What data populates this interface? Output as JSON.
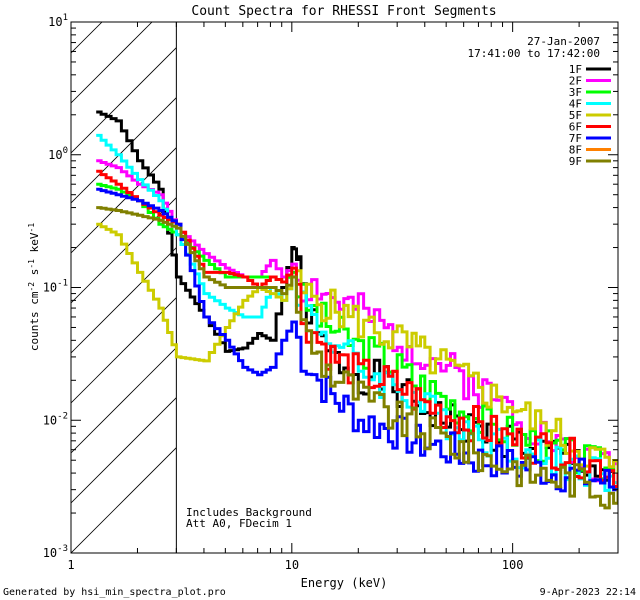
{
  "chart_data": {
    "type": "line",
    "title": "Count Spectra for RHESSI Front Segments",
    "date": "27-Jan-2007",
    "time_range": "17:41:00 to 17:42:00",
    "xlabel": "Energy (keV)",
    "ylabel": "counts cm-2 s-1 keV-1",
    "xscale": "log",
    "yscale": "log",
    "xlim": [
      1,
      300
    ],
    "ylim": [
      0.001,
      10
    ],
    "x_major_ticks": [
      {
        "v": 1,
        "label": "1"
      },
      {
        "v": 10,
        "label": "10"
      },
      {
        "v": 100,
        "label": "100"
      }
    ],
    "y_major_ticks": [
      {
        "exp": -3,
        "label": "10-3"
      },
      {
        "exp": -2,
        "label": "10-2"
      },
      {
        "exp": -1,
        "label": "10-1"
      },
      {
        "exp": 0,
        "label": "100"
      },
      {
        "exp": 1,
        "label": "101"
      }
    ],
    "shaded_region": {
      "x_min": 1,
      "x_max": 3,
      "description": "excluded low-energy band"
    },
    "annotations": [
      "Includes Background",
      "Att A0, FDecim 1"
    ],
    "legend_position": "top-right",
    "series": [
      {
        "name": "1F",
        "color": "#000000",
        "points": [
          [
            1.3,
            2.1
          ],
          [
            1.6,
            1.8
          ],
          [
            2,
            0.9
          ],
          [
            2.5,
            0.55
          ],
          [
            3,
            0.12
          ],
          [
            4,
            0.06
          ],
          [
            5,
            0.033
          ],
          [
            6,
            0.035
          ],
          [
            7,
            0.045
          ],
          [
            8,
            0.04
          ],
          [
            9,
            0.1
          ],
          [
            10,
            0.2
          ],
          [
            10.5,
            0.18
          ],
          [
            11,
            0.09
          ],
          [
            13,
            0.04
          ],
          [
            15,
            0.03
          ],
          [
            18,
            0.025
          ],
          [
            20,
            0.022
          ],
          [
            25,
            0.02
          ],
          [
            30,
            0.016
          ],
          [
            35,
            0.014
          ],
          [
            40,
            0.012
          ],
          [
            50,
            0.01
          ],
          [
            60,
            0.009
          ],
          [
            70,
            0.008
          ],
          [
            80,
            0.0075
          ],
          [
            100,
            0.007
          ],
          [
            120,
            0.006
          ],
          [
            150,
            0.0055
          ],
          [
            200,
            0.005
          ],
          [
            250,
            0.004
          ],
          [
            300,
            0.0035
          ]
        ]
      },
      {
        "name": "2F",
        "color": "#ff00ff",
        "points": [
          [
            1.3,
            0.9
          ],
          [
            1.6,
            0.8
          ],
          [
            2,
            0.6
          ],
          [
            2.5,
            0.5
          ],
          [
            3,
            0.28
          ],
          [
            4,
            0.18
          ],
          [
            5,
            0.14
          ],
          [
            6,
            0.12
          ],
          [
            7,
            0.12
          ],
          [
            8,
            0.16
          ],
          [
            9,
            0.12
          ],
          [
            10,
            0.15
          ],
          [
            11,
            0.1
          ],
          [
            13,
            0.1
          ],
          [
            15,
            0.08
          ],
          [
            18,
            0.07
          ],
          [
            20,
            0.065
          ],
          [
            25,
            0.05
          ],
          [
            30,
            0.04
          ],
          [
            35,
            0.035
          ],
          [
            40,
            0.03
          ],
          [
            50,
            0.025
          ],
          [
            60,
            0.02
          ],
          [
            70,
            0.017
          ],
          [
            80,
            0.015
          ],
          [
            100,
            0.012
          ],
          [
            120,
            0.009
          ],
          [
            150,
            0.007
          ],
          [
            200,
            0.005
          ],
          [
            250,
            0.0045
          ],
          [
            300,
            0.004
          ]
        ]
      },
      {
        "name": "3F",
        "color": "#00ff00",
        "points": [
          [
            1.3,
            0.6
          ],
          [
            1.6,
            0.55
          ],
          [
            2,
            0.45
          ],
          [
            2.5,
            0.3
          ],
          [
            3,
            0.25
          ],
          [
            4,
            0.16
          ],
          [
            5,
            0.12
          ],
          [
            6,
            0.12
          ],
          [
            7,
            0.12
          ],
          [
            8,
            0.12
          ],
          [
            9,
            0.11
          ],
          [
            10,
            0.13
          ],
          [
            11,
            0.08
          ],
          [
            13,
            0.06
          ],
          [
            15,
            0.05
          ],
          [
            18,
            0.04
          ],
          [
            20,
            0.035
          ],
          [
            25,
            0.03
          ],
          [
            30,
            0.025
          ],
          [
            35,
            0.02
          ],
          [
            40,
            0.018
          ],
          [
            50,
            0.014
          ],
          [
            60,
            0.012
          ],
          [
            70,
            0.01
          ],
          [
            80,
            0.009
          ],
          [
            100,
            0.008
          ],
          [
            120,
            0.007
          ],
          [
            150,
            0.006
          ],
          [
            200,
            0.005
          ],
          [
            250,
            0.0045
          ],
          [
            300,
            0.004
          ]
        ]
      },
      {
        "name": "4F",
        "color": "#00ffff",
        "points": [
          [
            1.3,
            1.4
          ],
          [
            1.6,
            1.0
          ],
          [
            2,
            0.65
          ],
          [
            2.5,
            0.45
          ],
          [
            3,
            0.25
          ],
          [
            4,
            0.09
          ],
          [
            5,
            0.07
          ],
          [
            6,
            0.06
          ],
          [
            7,
            0.06
          ],
          [
            8,
            0.1
          ],
          [
            9,
            0.08
          ],
          [
            10,
            0.12
          ],
          [
            11,
            0.08
          ],
          [
            13,
            0.05
          ],
          [
            15,
            0.04
          ],
          [
            18,
            0.03
          ],
          [
            20,
            0.025
          ],
          [
            25,
            0.02
          ],
          [
            30,
            0.018
          ],
          [
            35,
            0.015
          ],
          [
            40,
            0.012
          ],
          [
            50,
            0.01
          ],
          [
            60,
            0.009
          ],
          [
            70,
            0.008
          ],
          [
            80,
            0.007
          ],
          [
            100,
            0.006
          ],
          [
            120,
            0.0055
          ],
          [
            150,
            0.005
          ],
          [
            200,
            0.0045
          ],
          [
            250,
            0.004
          ],
          [
            300,
            0.0035
          ]
        ]
      },
      {
        "name": "5F",
        "color": "#cccc00",
        "points": [
          [
            1.3,
            0.3
          ],
          [
            1.6,
            0.25
          ],
          [
            2,
            0.13
          ],
          [
            2.5,
            0.07
          ],
          [
            3,
            0.03
          ],
          [
            4,
            0.028
          ],
          [
            5,
            0.05
          ],
          [
            6,
            0.08
          ],
          [
            7,
            0.1
          ],
          [
            8,
            0.09
          ],
          [
            9,
            0.08
          ],
          [
            10,
            0.12
          ],
          [
            11,
            0.09
          ],
          [
            13,
            0.08
          ],
          [
            15,
            0.07
          ],
          [
            18,
            0.06
          ],
          [
            20,
            0.055
          ],
          [
            25,
            0.045
          ],
          [
            30,
            0.04
          ],
          [
            35,
            0.035
          ],
          [
            40,
            0.03
          ],
          [
            50,
            0.025
          ],
          [
            60,
            0.02
          ],
          [
            70,
            0.018
          ],
          [
            80,
            0.015
          ],
          [
            100,
            0.013
          ],
          [
            120,
            0.01
          ],
          [
            150,
            0.008
          ],
          [
            200,
            0.006
          ],
          [
            250,
            0.005
          ],
          [
            300,
            0.004
          ]
        ]
      },
      {
        "name": "6F",
        "color": "#ff0000",
        "points": [
          [
            1.3,
            0.75
          ],
          [
            1.6,
            0.6
          ],
          [
            2,
            0.45
          ],
          [
            2.5,
            0.35
          ],
          [
            3,
            0.3
          ],
          [
            4,
            0.13
          ],
          [
            5,
            0.13
          ],
          [
            6,
            0.12
          ],
          [
            7,
            0.1
          ],
          [
            8,
            0.12
          ],
          [
            9,
            0.11
          ],
          [
            10,
            0.14
          ],
          [
            11,
            0.06
          ],
          [
            13,
            0.04
          ],
          [
            15,
            0.03
          ],
          [
            18,
            0.025
          ],
          [
            20,
            0.022
          ],
          [
            25,
            0.02
          ],
          [
            30,
            0.018
          ],
          [
            35,
            0.015
          ],
          [
            40,
            0.013
          ],
          [
            50,
            0.011
          ],
          [
            60,
            0.01
          ],
          [
            70,
            0.009
          ],
          [
            80,
            0.008
          ],
          [
            100,
            0.007
          ],
          [
            120,
            0.0065
          ],
          [
            150,
            0.006
          ],
          [
            200,
            0.005
          ],
          [
            250,
            0.0045
          ],
          [
            300,
            0.004
          ]
        ]
      },
      {
        "name": "7F",
        "color": "#0000ff",
        "points": [
          [
            1.3,
            0.55
          ],
          [
            1.6,
            0.5
          ],
          [
            2,
            0.45
          ],
          [
            2.5,
            0.38
          ],
          [
            3,
            0.3
          ],
          [
            4,
            0.06
          ],
          [
            5,
            0.04
          ],
          [
            6,
            0.025
          ],
          [
            7,
            0.022
          ],
          [
            8,
            0.025
          ],
          [
            9,
            0.04
          ],
          [
            10,
            0.055
          ],
          [
            11,
            0.03
          ],
          [
            13,
            0.02
          ],
          [
            15,
            0.015
          ],
          [
            18,
            0.012
          ],
          [
            20,
            0.01
          ],
          [
            25,
            0.009
          ],
          [
            30,
            0.008
          ],
          [
            35,
            0.007
          ],
          [
            40,
            0.0065
          ],
          [
            50,
            0.006
          ],
          [
            60,
            0.0055
          ],
          [
            70,
            0.005
          ],
          [
            80,
            0.005
          ],
          [
            100,
            0.0045
          ],
          [
            120,
            0.0045
          ],
          [
            150,
            0.004
          ],
          [
            200,
            0.0038
          ],
          [
            250,
            0.0035
          ],
          [
            300,
            0.003
          ]
        ]
      },
      {
        "name": "8F",
        "color": "#ff8000",
        "points": []
      },
      {
        "name": "9F",
        "color": "#808000",
        "points": [
          [
            1.3,
            0.4
          ],
          [
            1.6,
            0.38
          ],
          [
            2,
            0.35
          ],
          [
            2.5,
            0.32
          ],
          [
            3,
            0.28
          ],
          [
            4,
            0.12
          ],
          [
            5,
            0.1
          ],
          [
            6,
            0.1
          ],
          [
            7,
            0.1
          ],
          [
            8,
            0.1
          ],
          [
            9,
            0.09
          ],
          [
            10,
            0.12
          ],
          [
            11,
            0.05
          ],
          [
            13,
            0.03
          ],
          [
            15,
            0.022
          ],
          [
            18,
            0.018
          ],
          [
            20,
            0.015
          ],
          [
            25,
            0.012
          ],
          [
            30,
            0.01
          ],
          [
            35,
            0.009
          ],
          [
            40,
            0.008
          ],
          [
            50,
            0.007
          ],
          [
            60,
            0.006
          ],
          [
            70,
            0.0055
          ],
          [
            80,
            0.005
          ],
          [
            100,
            0.0045
          ],
          [
            120,
            0.004
          ],
          [
            150,
            0.0038
          ],
          [
            200,
            0.0035
          ],
          [
            250,
            0.003
          ],
          [
            300,
            0.003
          ]
        ]
      }
    ]
  },
  "footer": {
    "generated_by": "Generated by hsi_min_spectra_plot.pro",
    "timestamp": "9-Apr-2023 22:14"
  }
}
